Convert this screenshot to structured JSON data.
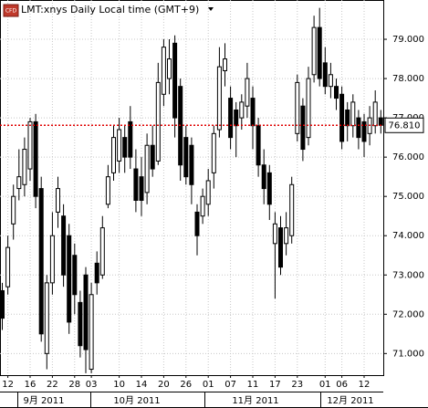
{
  "chart_data": {
    "type": "candlestick",
    "badge": "CFD",
    "title": "LMT:xnys Daily Local time (GMT+9)",
    "categories": [
      null,
      "12",
      null,
      null,
      null,
      "16",
      null,
      null,
      null,
      "22",
      null,
      null,
      null,
      "28",
      null,
      null,
      "03",
      null,
      null,
      null,
      null,
      "10",
      null,
      null,
      null,
      "14",
      null,
      null,
      null,
      "20",
      null,
      null,
      null,
      "26",
      null,
      null,
      null,
      "01",
      null,
      null,
      null,
      "07",
      null,
      null,
      null,
      "11",
      null,
      null,
      null,
      "17",
      null,
      null,
      null,
      "23",
      null,
      null,
      null,
      null,
      "01",
      null,
      null,
      "06",
      null,
      null,
      null,
      "12",
      null,
      null,
      null
    ],
    "months": [
      "9月 2011",
      "10月 2011",
      "11月 2011",
      "12月 2011"
    ],
    "open": [
      72.6,
      72.7,
      74.3,
      75.2,
      75.3,
      75.7,
      76.9,
      75.2,
      71.0,
      72.8,
      74.6,
      74.5,
      74.0,
      73.5,
      72.3,
      73.0,
      70.6,
      73.3,
      73.0,
      74.8,
      75.6,
      75.9,
      76.5,
      76.9,
      75.7,
      75.5,
      75.1,
      76.3,
      75.9,
      77.6,
      78.0,
      78.9,
      77.8,
      76.5,
      76.3,
      74.6,
      74.5,
      74.8,
      75.6,
      76.7,
      78.2,
      77.5,
      77.2,
      77.0,
      77.3,
      77.5,
      76.8,
      75.8,
      75.6,
      73.8,
      74.2,
      73.8,
      74.0,
      76.6,
      77.3,
      76.5,
      78.1,
      79.3,
      78.4,
      77.8,
      77.8,
      77.6,
      77.2,
      76.8,
      77.0,
      76.9,
      76.6,
      76.8,
      77.0
    ],
    "high": [
      72.8,
      74.0,
      75.3,
      76.2,
      76.5,
      77.0,
      77.1,
      75.5,
      73.0,
      74.6,
      75.5,
      74.8,
      74.3,
      73.8,
      72.6,
      73.2,
      72.8,
      73.6,
      74.5,
      75.8,
      76.8,
      77.0,
      76.8,
      77.3,
      76.2,
      76.0,
      76.6,
      76.8,
      78.4,
      79.0,
      79.0,
      79.1,
      78.0,
      76.8,
      76.5,
      74.8,
      75.2,
      75.7,
      76.8,
      78.8,
      78.9,
      77.8,
      77.4,
      77.6,
      78.4,
      77.8,
      77.0,
      76.2,
      75.8,
      74.6,
      74.5,
      74.6,
      75.5,
      78.1,
      77.5,
      78.3,
      79.6,
      79.8,
      78.8,
      78.4,
      78.0,
      77.8,
      77.4,
      77.6,
      77.2,
      77.1,
      77.3,
      77.7,
      77.2
    ],
    "low": [
      71.6,
      72.5,
      73.9,
      74.9,
      75.0,
      75.4,
      74.7,
      71.3,
      70.6,
      72.5,
      74.2,
      72.7,
      71.5,
      72.0,
      70.9,
      70.5,
      70.5,
      72.5,
      72.9,
      74.7,
      75.4,
      75.6,
      75.6,
      75.7,
      74.6,
      74.5,
      74.8,
      75.5,
      75.8,
      77.3,
      77.6,
      76.5,
      75.4,
      75.3,
      74.8,
      73.5,
      74.3,
      74.5,
      75.2,
      76.5,
      77.8,
      76.2,
      76.0,
      76.7,
      77.0,
      76.2,
      75.5,
      74.8,
      74.4,
      72.4,
      73.0,
      73.5,
      73.8,
      76.4,
      75.9,
      76.3,
      77.9,
      77.8,
      77.6,
      77.5,
      77.2,
      76.2,
      76.4,
      76.5,
      76.2,
      76.0,
      76.3,
      76.6,
      76.6
    ],
    "close": [
      71.9,
      73.7,
      75.0,
      75.5,
      76.2,
      76.9,
      75.0,
      71.5,
      72.8,
      74.0,
      75.2,
      73.0,
      71.8,
      72.5,
      71.2,
      71.1,
      72.5,
      72.8,
      74.2,
      75.5,
      76.5,
      76.7,
      76.0,
      76.0,
      74.9,
      74.9,
      76.3,
      75.7,
      77.9,
      78.8,
      78.5,
      77.0,
      75.8,
      75.5,
      75.3,
      74.0,
      75.0,
      75.4,
      76.6,
      78.3,
      78.5,
      76.5,
      76.8,
      77.4,
      78.0,
      76.8,
      75.8,
      75.2,
      74.8,
      74.3,
      73.2,
      74.2,
      75.3,
      77.9,
      76.2,
      78.0,
      79.3,
      78.0,
      77.8,
      78.1,
      77.5,
      76.4,
      76.8,
      77.4,
      76.5,
      76.4,
      77.0,
      77.4,
      76.81
    ],
    "up_color": "#ffffff",
    "down_color": "#000000",
    "ylim": [
      70.45,
      80.0
    ],
    "yticks": [
      {
        "value": 71,
        "label": "71.000"
      },
      {
        "value": 72,
        "label": "72.000"
      },
      {
        "value": 73,
        "label": "73.000"
      },
      {
        "value": 74,
        "label": "74.000"
      },
      {
        "value": 75,
        "label": "75.000"
      },
      {
        "value": 76,
        "label": "76.000"
      },
      {
        "value": 77,
        "label": "77.000"
      },
      {
        "value": 78,
        "label": "78.000"
      },
      {
        "value": 79,
        "label": "79.000"
      }
    ],
    "last_price": {
      "value": 76.81,
      "label": "76.810",
      "color": "#e00000"
    },
    "grid": true
  }
}
